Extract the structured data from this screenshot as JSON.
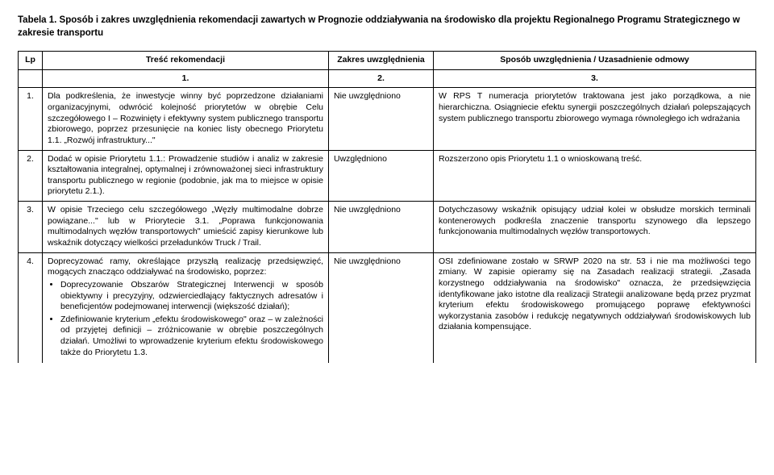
{
  "caption": "Tabela 1. Sposób i zakres uwzględnienia rekomendacji zawartych w Prognozie oddziaływania na środowisko dla projektu Regionalnego Programu Strategicznego w zakresie transportu",
  "headers": {
    "lp": "Lp",
    "tresc": "Treść rekomendacji",
    "zakres": "Zakres uwzględnienia",
    "sposob": "Sposób uwzględnienia / Uzasadnienie odmowy"
  },
  "numrow": {
    "c1": "1.",
    "c2": "2.",
    "c3": "3."
  },
  "rows": [
    {
      "lp": "1.",
      "tresc": "Dla podkreślenia, że inwestycje winny być poprzedzone działaniami organizacyjnymi, odwrócić kolejność priorytetów w obrębie Celu szczegółowego I – Rozwinięty i efektywny system publicznego transportu zbiorowego, poprzez przesunięcie na koniec listy obecnego Priorytetu 1.1. „Rozwój infrastruktury...\"",
      "zakres": "Nie uwzględniono",
      "sposob": "W RPS T numeracja priorytetów traktowana jest jako porządkowa, a nie hierarchiczna. Osiągniecie efektu synergii poszczególnych działań polepszających system publicznego transportu zbiorowego wymaga równoległego ich wdrażania"
    },
    {
      "lp": "2.",
      "tresc": "Dodać w opisie Priorytetu 1.1.: Prowadzenie studiów i analiz w zakresie kształtowania integralnej, optymalnej i zrównoważonej sieci infrastruktury transportu publicznego w regionie (podobnie, jak ma to miejsce w opisie priorytetu 2.1.).",
      "zakres": "Uwzględniono",
      "sposob": "Rozszerzono opis Priorytetu 1.1 o wnioskowaną treść."
    },
    {
      "lp": "3.",
      "tresc": "W opisie Trzeciego celu szczegółowego „Węzły multimodalne dobrze powiązane...\" lub w  Priorytecie 3.1. „Poprawa funkcjonowania multimodalnych węzłów transportowych\" umieścić zapisy kierunkowe lub wskaźnik dotyczący wielkości przeładunków Truck / Trail.",
      "zakres": "Nie uwzględniono",
      "sposob": "Dotychczasowy wskaźnik opisujący udział kolei w obsłudze morskich terminali kontenerowych podkreśla znaczenie transportu szynowego dla lepszego funkcjonowania multimodalnych węzłów transportowych."
    },
    {
      "lp": "4.",
      "tresc_intro": "Doprecyzować ramy, określające przyszłą realizację przedsięwzięć, mogących znacząco oddziaływać na środowisko, poprzez:",
      "bullets": [
        "Doprecyzowanie Obszarów Strategicznej Interwencji w sposób obiektywny i precyzyjny, odzwierciedlający faktycznych adresatów i beneficjentów podejmowanej interwencji (większość działań);",
        "Zdefiniowanie kryterium „efektu środowiskowego\" oraz – w zależności od przyjętej definicji – zróżnicowanie w obrębie poszczególnych działań. Umożliwi to wprowadzenie kryterium efektu środowiskowego także do Priorytetu 1.3."
      ],
      "zakres": "Nie uwzględniono",
      "sposob": "OSI zdefiniowane zostało w SRWP 2020 na str. 53 i nie ma możliwości tego zmiany. W zapisie opieramy się na Zasadach realizacji strategii. „Zasada korzystnego oddziaływania na środowisko\" oznacza, że przedsięwzięcia identyfikowane jako istotne dla realizacji Strategii analizowane będą przez pryzmat kryterium efektu środowiskowego promującego poprawę efektywności wykorzystania zasobów i redukcję negatywnych oddziaływań środowiskowych lub działania kompensujące."
    }
  ]
}
